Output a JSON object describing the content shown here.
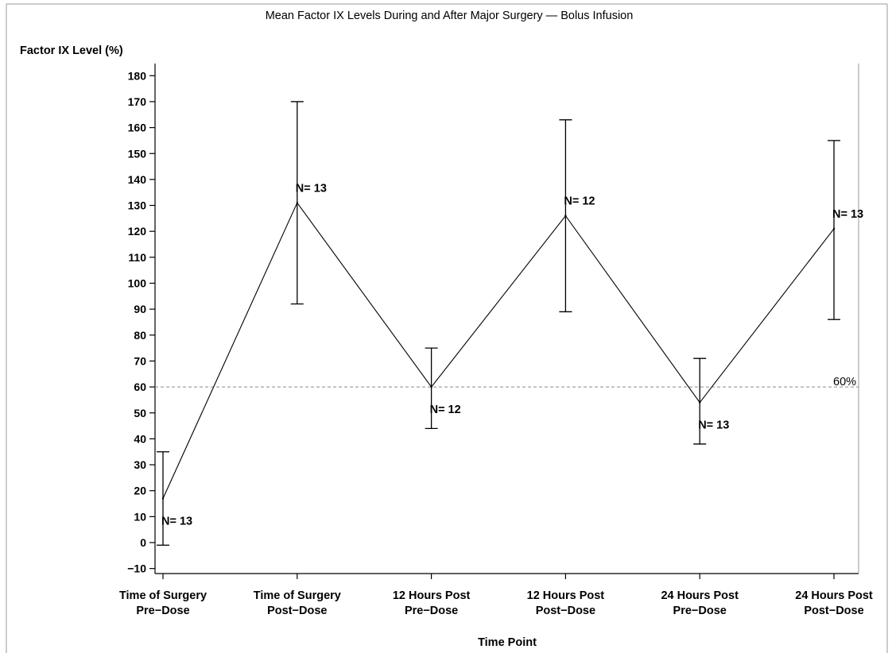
{
  "chart_data": {
    "type": "line",
    "title": "Mean Factor IX Levels During and After Major Surgery — Bolus Infusion",
    "xlabel": "Time Point",
    "ylabel": "Factor IX Level (%)",
    "ylim": [
      -13,
      188
    ],
    "yticks": [
      -10,
      0,
      10,
      20,
      30,
      40,
      50,
      60,
      70,
      80,
      90,
      100,
      110,
      120,
      130,
      140,
      150,
      160,
      170,
      180
    ],
    "ytick_labels": [
      "−10",
      "0",
      "10",
      "20",
      "30",
      "40",
      "50",
      "60",
      "70",
      "80",
      "90",
      "100",
      "110",
      "120",
      "130",
      "140",
      "150",
      "160",
      "170",
      "180"
    ],
    "categories": [
      [
        "Time of Surgery",
        "Pre−Dose"
      ],
      [
        "Time of Surgery",
        "Post−Dose"
      ],
      [
        "12 Hours Post",
        "Pre−Dose"
      ],
      [
        "12 Hours Post",
        "Post−Dose"
      ],
      [
        "24 Hours Post",
        "Pre−Dose"
      ],
      [
        "24 Hours Post",
        "Post−Dose"
      ]
    ],
    "series": [
      {
        "values": [
          17,
          131,
          60,
          126,
          54,
          121
        ],
        "error_low": [
          -1,
          92,
          44,
          89,
          38,
          86
        ],
        "error_high": [
          35,
          170,
          75,
          163,
          71,
          155
        ],
        "n_labels": [
          "N= 13",
          "N= 13",
          "N= 12",
          "N= 12",
          "N= 13",
          "N= 13"
        ],
        "n_label_positions": [
          "below",
          "above",
          "below",
          "above",
          "below",
          "above"
        ]
      }
    ],
    "reference_line": {
      "value": 60,
      "label": "60%",
      "style": "dashed"
    },
    "grid": false,
    "legend": "none"
  }
}
